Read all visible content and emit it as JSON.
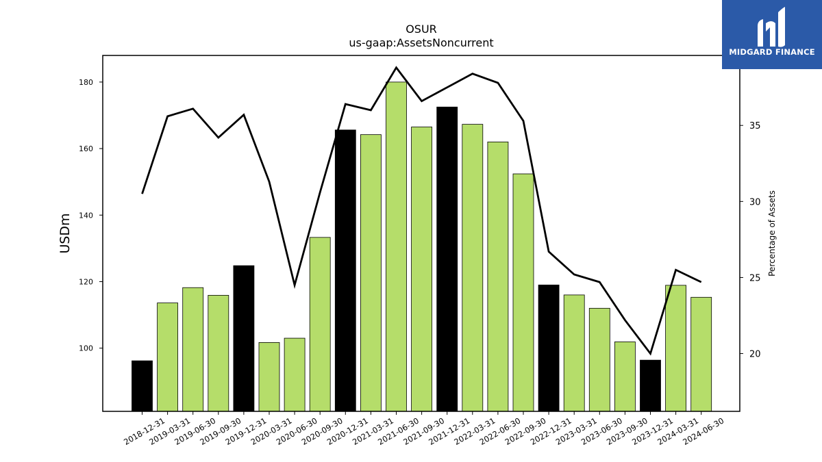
{
  "chart_data": {
    "type": "bar",
    "title": "OSUR",
    "subtitle": "us-gaap:AssetsNoncurrent",
    "ylabel": "USDm",
    "y2label": "Percentage of Assets",
    "ylim": [
      81,
      188
    ],
    "y2lim": [
      16.2,
      39.6
    ],
    "yticks": [
      100,
      120,
      140,
      160,
      180
    ],
    "y2ticks": [
      20,
      25,
      30,
      35
    ],
    "grid": false,
    "categories": [
      "2018-12-31",
      "2019-03-31",
      "2019-06-30",
      "2019-09-30",
      "2019-12-31",
      "2020-03-31",
      "2020-06-30",
      "2020-09-30",
      "2020-12-31",
      "2021-03-31",
      "2021-06-30",
      "2021-09-30",
      "2021-12-31",
      "2022-03-31",
      "2022-06-30",
      "2022-09-30",
      "2022-12-31",
      "2023-03-31",
      "2023-06-30",
      "2023-09-30",
      "2023-12-31",
      "2024-03-31",
      "2024-06-30"
    ],
    "series": [
      {
        "kind": "bar",
        "values": [
          96.2,
          113.6,
          118.2,
          115.9,
          124.8,
          101.7,
          103.0,
          133.3,
          165.6,
          164.2,
          180.0,
          166.5,
          172.5,
          167.3,
          162.0,
          152.4,
          119.0,
          116.0,
          112.0,
          101.9,
          96.4,
          118.9,
          115.3
        ],
        "colors": [
          "#000000",
          "#b5dd6a",
          "#b5dd6a",
          "#b5dd6a",
          "#000000",
          "#b5dd6a",
          "#b5dd6a",
          "#b5dd6a",
          "#000000",
          "#b5dd6a",
          "#b5dd6a",
          "#b5dd6a",
          "#000000",
          "#b5dd6a",
          "#b5dd6a",
          "#b5dd6a",
          "#000000",
          "#b5dd6a",
          "#b5dd6a",
          "#b5dd6a",
          "#000000",
          "#b5dd6a",
          "#b5dd6a"
        ]
      },
      {
        "kind": "line",
        "axis": "right",
        "color": "#000000",
        "values": [
          30.5,
          35.6,
          36.1,
          34.2,
          35.7,
          31.3,
          24.5,
          30.6,
          36.4,
          36.0,
          38.8,
          36.6,
          37.5,
          38.4,
          37.8,
          35.3,
          26.7,
          25.2,
          24.7,
          22.2,
          20.0,
          25.5,
          24.7
        ]
      }
    ]
  },
  "logo": {
    "text": "MIDGARD FINANCE",
    "color": "#2b5aa8"
  }
}
